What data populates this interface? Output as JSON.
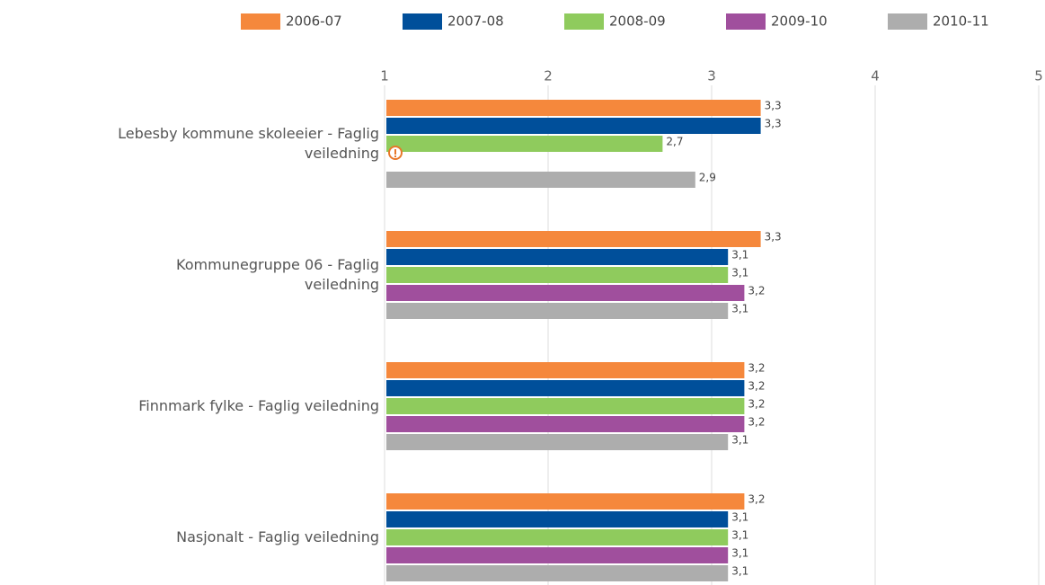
{
  "chart_data": {
    "type": "hbar",
    "categories": [
      "Lebesby kommune skoleeier - Faglig veiledning",
      "Kommunegruppe 06 - Faglig veiledning",
      "Finnmark fylke - Faglig veiledning",
      "Nasjonalt - Faglig veiledning"
    ],
    "series": [
      {
        "name": "2006-07",
        "color": "#f5883c",
        "values": [
          3.3,
          3.3,
          3.2,
          3.2
        ],
        "value_labels": [
          "3,3",
          "3,3",
          "3,2",
          "3,2"
        ]
      },
      {
        "name": "2007-08",
        "color": "#004f9a",
        "values": [
          3.3,
          3.1,
          3.2,
          3.1
        ],
        "value_labels": [
          "3,3",
          "3,1",
          "3,2",
          "3,1"
        ]
      },
      {
        "name": "2008-09",
        "color": "#8fcb5d",
        "values": [
          2.7,
          3.1,
          3.2,
          3.1
        ],
        "value_labels": [
          "2,7",
          "3,1",
          "3,2",
          "3,1"
        ]
      },
      {
        "name": "2009-10",
        "color": "#a04f9d",
        "values": [
          null,
          3.2,
          3.2,
          3.1
        ],
        "value_labels": [
          null,
          "3,2",
          "3,2",
          "3,1"
        ]
      },
      {
        "name": "2010-11",
        "color": "#adadad",
        "values": [
          2.9,
          3.1,
          3.1,
          3.1
        ],
        "value_labels": [
          "2,9",
          "3,1",
          "3,1",
          "3,1"
        ]
      }
    ],
    "xlim": [
      1,
      5
    ],
    "xticks": [
      1,
      2,
      3,
      4,
      5
    ],
    "grid": true,
    "legend": "top"
  }
}
